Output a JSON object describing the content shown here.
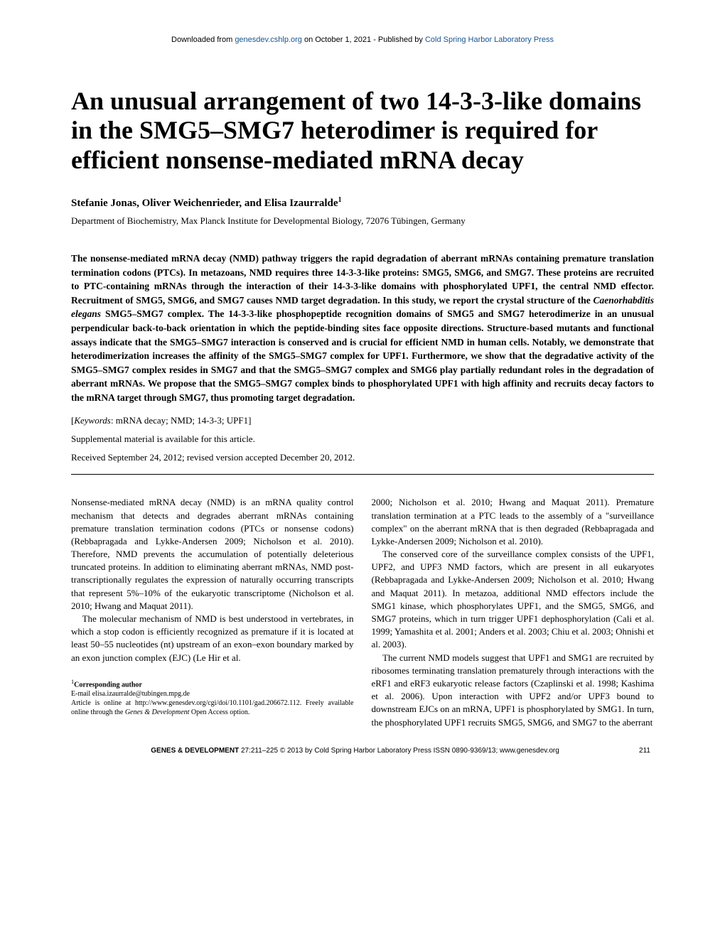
{
  "banner": {
    "prefix": "Downloaded from ",
    "site": "genesdev.cshlp.org",
    "date_text": " on October 1, 2021 - Published by ",
    "publisher": "Cold Spring Harbor Laboratory Press"
  },
  "title": "An unusual arrangement of two 14-3-3-like domains in the SMG5–SMG7 heterodimer is required for efficient nonsense-mediated mRNA decay",
  "authors": "Stefanie Jonas, Oliver Weichenrieder, and Elisa Izaurralde",
  "authors_sup": "1",
  "affiliation": "Department of Biochemistry, Max Planck Institute for Developmental Biology, 72076 Tübingen, Germany",
  "abstract_text": "The nonsense-mediated mRNA decay (NMD) pathway triggers the rapid degradation of aberrant mRNAs containing premature translation termination codons (PTCs). In metazoans, NMD requires three 14-3-3-like proteins: SMG5, SMG6, and SMG7. These proteins are recruited to PTC-containing mRNAs through the interaction of their 14-3-3-like domains with phosphorylated UPF1, the central NMD effector. Recruitment of SMG5, SMG6, and SMG7 causes NMD target degradation. In this study, we report the crystal structure of the Caenorhabditis elegans SMG5–SMG7 complex. The 14-3-3-like phosphopeptide recognition domains of SMG5 and SMG7 heterodimerize in an unusual perpendicular back-to-back orientation in which the peptide-binding sites face opposite directions. Structure-based mutants and functional assays indicate that the SMG5–SMG7 interaction is conserved and is crucial for efficient NMD in human cells. Notably, we demonstrate that heterodimerization increases the affinity of the SMG5–SMG7 complex for UPF1. Furthermore, we show that the degradative activity of the SMG5–SMG7 complex resides in SMG7 and that the SMG5–SMG7 complex and SMG6 play partially redundant roles in the degradation of aberrant mRNAs. We propose that the SMG5–SMG7 complex binds to phosphorylated UPF1 with high affinity and recruits decay factors to the mRNA target through SMG7, thus promoting target degradation.",
  "keywords_label": "Keywords",
  "keywords_text": ": mRNA decay; NMD; 14-3-3; UPF1]",
  "supplemental": "Supplemental material is available for this article.",
  "received": "Received September 24, 2012; revised version accepted December 20, 2012.",
  "body": {
    "col1_p1": "Nonsense-mediated mRNA decay (NMD) is an mRNA quality control mechanism that detects and degrades aberrant mRNAs containing premature translation termination codons (PTCs or nonsense codons) (Rebbapragada and Lykke-Andersen 2009; Nicholson et al. 2010). Therefore, NMD prevents the accumulation of potentially deleterious truncated proteins. In addition to eliminating aberrant mRNAs, NMD post-transcriptionally regulates the expression of naturally occurring transcripts that represent 5%–10% of the eukaryotic transcriptome (Nicholson et al. 2010; Hwang and Maquat 2011).",
    "col1_p2": "The molecular mechanism of NMD is best understood in vertebrates, in which a stop codon is efficiently recognized as premature if it is located at least 50–55 nucleotides (nt) upstream of an exon–exon boundary marked by an exon junction complex (EJC) (Le Hir et al.",
    "col2_p1": "2000; Nicholson et al. 2010; Hwang and Maquat 2011). Premature translation termination at a PTC leads to the assembly of a \"surveillance complex\" on the aberrant mRNA that is then degraded (Rebbapragada and Lykke-Andersen 2009; Nicholson et al. 2010).",
    "col2_p2": "The conserved core of the surveillance complex consists of the UPF1, UPF2, and UPF3 NMD factors, which are present in all eukaryotes (Rebbapragada and Lykke-Andersen 2009; Nicholson et al. 2010; Hwang and Maquat 2011). In metazoa, additional NMD effectors include the SMG1 kinase, which phosphorylates UPF1, and the SMG5, SMG6, and SMG7 proteins, which in turn trigger UPF1 dephosphorylation (Cali et al. 1999; Yamashita et al. 2001; Anders et al. 2003; Chiu et al. 2003; Ohnishi et al. 2003).",
    "col2_p3": "The current NMD models suggest that UPF1 and SMG1 are recruited by ribosomes terminating translation prematurely through interactions with the eRF1 and eRF3 eukaryotic release factors (Czaplinski et al. 1998; Kashima et al. 2006). Upon interaction with UPF2 and/or UPF3 bound to downstream EJCs on an mRNA, UPF1 is phosphorylated by SMG1. In turn, the phosphorylated UPF1 recruits SMG5, SMG6, and SMG7 to the aberrant"
  },
  "footnotes": {
    "sup": "1",
    "corresponding": "Corresponding author",
    "email_label": "E-mail ",
    "email": "elisa.izaurralde@tubingen.mpg.de",
    "article_online": "Article is online at http://www.genesdev.org/cgi/doi/10.1101/gad.206672.112. Freely available online through the ",
    "journal_italic": "Genes & Development",
    "open_access": " Open Access option."
  },
  "footer": {
    "genes": "GENES & DEVELOPMENT",
    "citation": " 27:211–225 © 2013 by Cold Spring Harbor Laboratory Press ISSN 0890-9369/13; www.genesdev.org",
    "page_num": "211"
  }
}
